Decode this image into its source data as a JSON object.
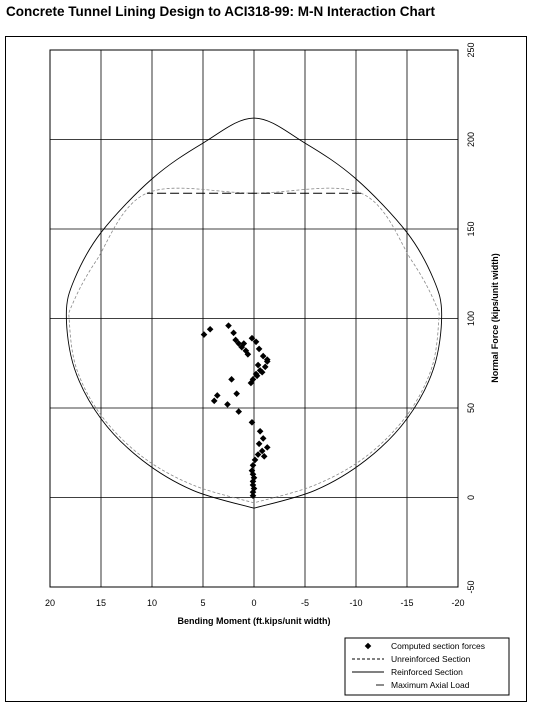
{
  "title": "Concrete Tunnel Lining Design to ACI318-99: M-N Interaction Chart",
  "chart_data": {
    "type": "scatter",
    "title": "Concrete Tunnel Lining Design to ACI318-99: M-N Interaction Chart",
    "xlabel": "Bending Moment (ft.kips/unit width)",
    "ylabel": "Normal Force (kips/unit width)",
    "xlim": [
      20,
      -20
    ],
    "ylim": [
      -50,
      250
    ],
    "x_ticks": [
      "20",
      "15",
      "10",
      "5",
      "0",
      "-5",
      "-10",
      "-15",
      "-20"
    ],
    "y_ticks": [
      "-50",
      "0",
      "50",
      "100",
      "150",
      "200",
      "250"
    ],
    "grid": true,
    "legend_position": "bottom-right",
    "series": [
      {
        "name": "Computed section forces",
        "style": "diamond-markers",
        "points": [
          [
            4.9,
            91
          ],
          [
            4.3,
            94
          ],
          [
            2.5,
            96
          ],
          [
            2.0,
            92
          ],
          [
            1.8,
            88
          ],
          [
            1.5,
            86
          ],
          [
            1.2,
            84
          ],
          [
            1.0,
            86
          ],
          [
            0.8,
            82
          ],
          [
            0.6,
            80
          ],
          [
            0.2,
            89
          ],
          [
            -0.2,
            87
          ],
          [
            -0.5,
            83
          ],
          [
            -0.9,
            79
          ],
          [
            -1.3,
            76
          ],
          [
            -1.1,
            73
          ],
          [
            -0.6,
            71
          ],
          [
            -0.3,
            68
          ],
          [
            0.1,
            66
          ],
          [
            0.3,
            64
          ],
          [
            -0.2,
            69
          ],
          [
            -0.8,
            70
          ],
          [
            -1.3,
            77
          ],
          [
            -0.4,
            74
          ],
          [
            2.2,
            66
          ],
          [
            1.7,
            58
          ],
          [
            3.6,
            57
          ],
          [
            2.6,
            52
          ],
          [
            3.9,
            54
          ],
          [
            1.5,
            48
          ],
          [
            0.2,
            42
          ],
          [
            -0.6,
            37
          ],
          [
            -0.9,
            33
          ],
          [
            -1.3,
            28
          ],
          [
            -0.8,
            26
          ],
          [
            -0.4,
            24
          ],
          [
            -0.1,
            21
          ],
          [
            0.1,
            18
          ],
          [
            0.2,
            15
          ],
          [
            0.1,
            13
          ],
          [
            0.0,
            11
          ],
          [
            0.1,
            9
          ],
          [
            0.1,
            7
          ],
          [
            0.0,
            5
          ],
          [
            0.1,
            3
          ],
          [
            0.1,
            1
          ],
          [
            -0.5,
            30
          ],
          [
            -1.0,
            23
          ]
        ]
      },
      {
        "name": "Unreinforced Section",
        "style": "dashed",
        "points": [
          [
            0,
            -3
          ],
          [
            6,
            7
          ],
          [
            11,
            23
          ],
          [
            15,
            46
          ],
          [
            17.4,
            72
          ],
          [
            18.1,
            98
          ],
          [
            17.8,
            108
          ],
          [
            15.5,
            132
          ],
          [
            10.5,
            170
          ],
          [
            0,
            170
          ],
          [
            -10.5,
            170
          ],
          [
            -15.5,
            132
          ],
          [
            -17.8,
            108
          ],
          [
            -18.1,
            98
          ],
          [
            -17.4,
            72
          ],
          [
            -15,
            46
          ],
          [
            -11,
            23
          ],
          [
            -6,
            7
          ],
          [
            0,
            -3
          ]
        ]
      },
      {
        "name": "Reinforced Section",
        "style": "solid",
        "points": [
          [
            0,
            -6
          ],
          [
            6,
            4
          ],
          [
            11,
            21
          ],
          [
            15,
            44
          ],
          [
            17.6,
            72
          ],
          [
            18.4,
            102
          ],
          [
            17.6,
            122
          ],
          [
            15,
            148
          ],
          [
            10,
            178
          ],
          [
            5,
            198
          ],
          [
            0,
            212
          ],
          [
            -5,
            198
          ],
          [
            -10,
            178
          ],
          [
            -15,
            148
          ],
          [
            -17.6,
            122
          ],
          [
            -18.4,
            102
          ],
          [
            -17.6,
            72
          ],
          [
            -15,
            44
          ],
          [
            -11,
            21
          ],
          [
            -6,
            4
          ],
          [
            0,
            -6
          ]
        ]
      },
      {
        "name": "Maximum Axial Load",
        "style": "dash-dot",
        "points": [
          [
            -10.5,
            170
          ],
          [
            10.5,
            170
          ]
        ]
      }
    ]
  }
}
